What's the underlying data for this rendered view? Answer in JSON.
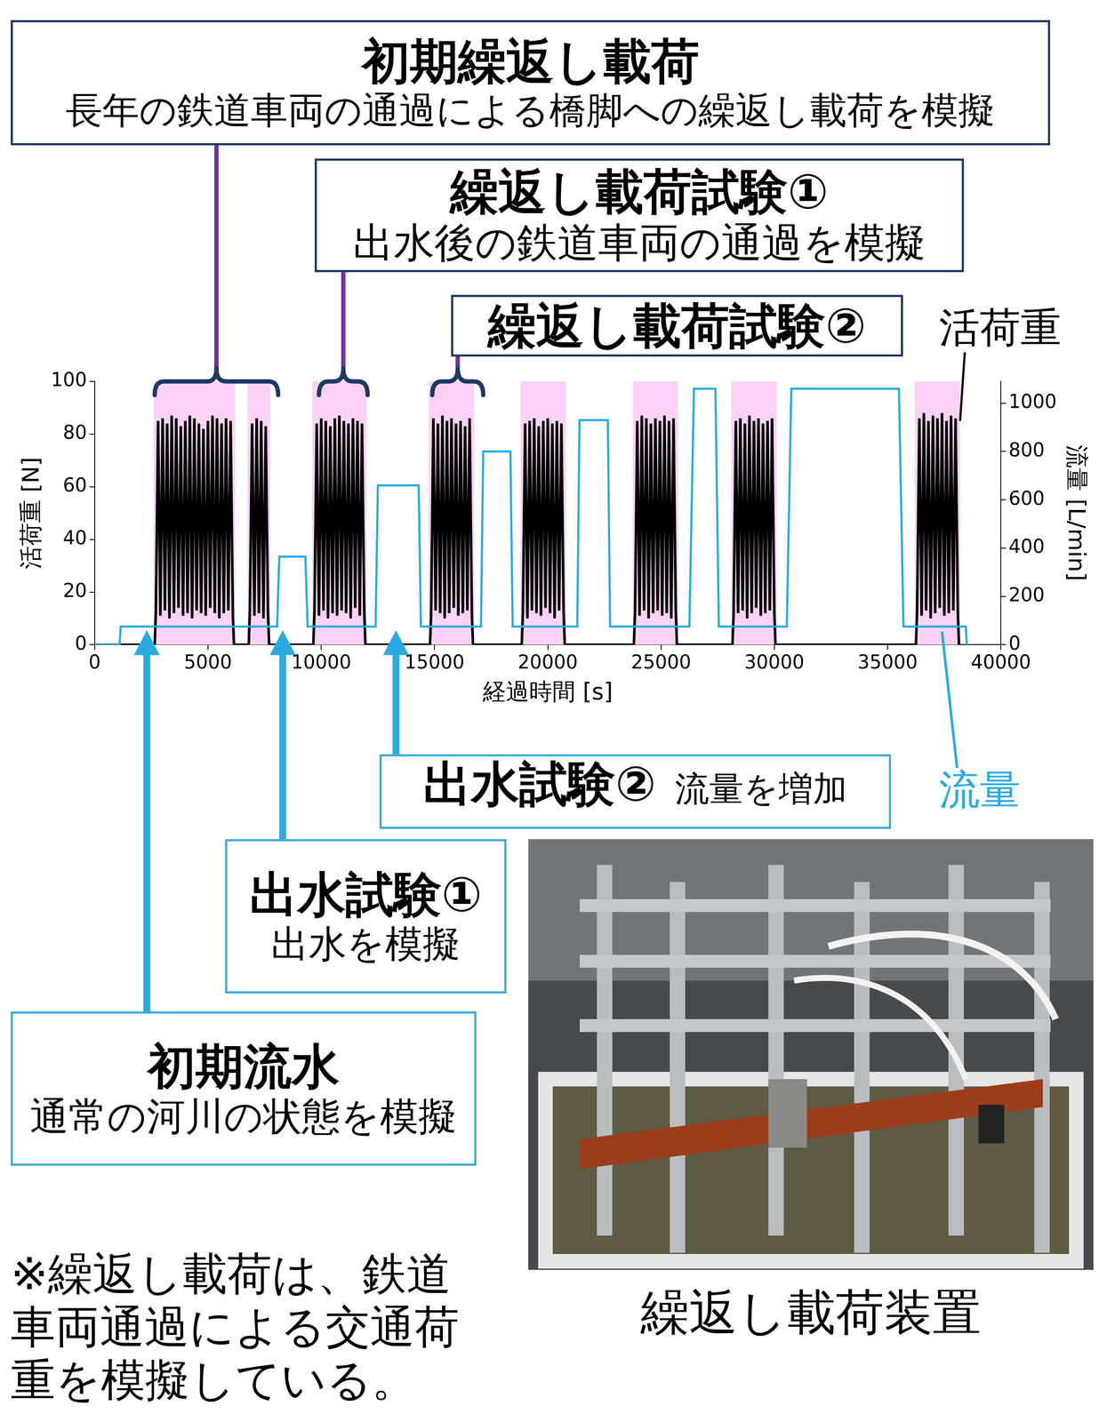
{
  "chart_data": {
    "type": "line",
    "x_label": "経過時間 [s]",
    "y_label": "活荷重 [N]",
    "y2_label": "流量 [L/min]",
    "xlim": [
      0,
      40000
    ],
    "xticks": [
      0,
      5000,
      10000,
      15000,
      20000,
      25000,
      30000,
      35000,
      40000
    ],
    "ylim": [
      0,
      100
    ],
    "yticks": [
      0,
      20,
      40,
      60,
      80,
      100
    ],
    "y2lim": [
      0,
      1090
    ],
    "y2ticks": [
      0,
      200,
      400,
      600,
      800,
      1000
    ],
    "grid": false,
    "series": [
      {
        "name": "活荷重",
        "color": "#000000",
        "axis": "y",
        "x": [
          0,
          2650,
          2700,
          2800,
          2900,
          3000,
          3100,
          3200,
          3300,
          3400,
          3500,
          3600,
          3700,
          3800,
          3900,
          4000,
          4100,
          4200,
          4300,
          4400,
          4500,
          4600,
          4700,
          4800,
          4900,
          5000,
          5100,
          5200,
          5300,
          5400,
          5500,
          5600,
          5700,
          5800,
          5900,
          6000,
          6100,
          6150,
          6800,
          6850,
          6950,
          7050,
          7150,
          7250,
          7350,
          7450,
          7550,
          7650,
          7700,
          9650,
          9700,
          9800,
          9900,
          10000,
          10100,
          10200,
          10300,
          10400,
          10500,
          10600,
          10700,
          10800,
          10900,
          11000,
          11100,
          11200,
          11300,
          11400,
          11500,
          11600,
          11700,
          11800,
          11900,
          11950,
          14800,
          14850,
          14950,
          15050,
          15150,
          15250,
          15350,
          15450,
          15550,
          15650,
          15750,
          15850,
          15950,
          16050,
          16150,
          16250,
          16350,
          16450,
          16550,
          16650,
          16700,
          18850,
          18900,
          19000,
          19100,
          19200,
          19300,
          19400,
          19500,
          19600,
          19700,
          19800,
          19900,
          20000,
          20100,
          20200,
          20300,
          20400,
          20500,
          20600,
          20700,
          20750,
          23800,
          23850,
          23950,
          24050,
          24150,
          24250,
          24350,
          24450,
          24550,
          24650,
          24750,
          24850,
          24950,
          25050,
          25150,
          25250,
          25350,
          25450,
          25550,
          25650,
          25700,
          28150,
          28200,
          28300,
          28400,
          28500,
          28600,
          28700,
          28800,
          28900,
          29000,
          29100,
          29200,
          29300,
          29400,
          29500,
          29600,
          29700,
          29800,
          29900,
          30000,
          30050,
          36250,
          36300,
          36400,
          36500,
          36600,
          36700,
          36800,
          36900,
          37000,
          37100,
          37200,
          37300,
          37400,
          37500,
          37600,
          37700,
          37800,
          37900,
          38000,
          38100,
          38150
        ],
        "values": [
          0,
          0,
          12,
          85,
          11,
          86,
          13,
          84,
          10,
          87,
          12,
          86,
          14,
          83,
          11,
          85,
          12,
          87,
          10,
          86,
          13,
          84,
          12,
          82,
          11,
          85,
          14,
          87,
          12,
          86,
          10,
          84,
          12,
          86,
          13,
          85,
          11,
          0,
          0,
          13,
          84,
          11,
          86,
          12,
          85,
          10,
          83,
          12,
          0,
          0,
          12,
          84,
          11,
          86,
          13,
          85,
          10,
          83,
          12,
          86,
          11,
          87,
          13,
          85,
          12,
          84,
          10,
          86,
          14,
          85,
          11,
          84,
          12,
          0,
          0,
          11,
          86,
          13,
          84,
          12,
          87,
          10,
          85,
          12,
          86,
          14,
          84,
          11,
          85,
          12,
          83,
          13,
          86,
          11,
          0,
          0,
          12,
          84,
          10,
          85,
          13,
          86,
          12,
          83,
          11,
          85,
          14,
          86,
          12,
          84,
          10,
          85,
          13,
          84,
          12,
          0,
          0,
          12,
          85,
          11,
          87,
          13,
          86,
          10,
          84,
          12,
          86,
          13,
          85,
          11,
          87,
          12,
          85,
          10,
          86,
          13,
          0,
          0,
          11,
          85,
          12,
          86,
          13,
          84,
          10,
          87,
          12,
          85,
          14,
          86,
          11,
          84,
          12,
          85,
          13,
          86,
          12,
          0,
          0,
          12,
          86,
          11,
          88,
          13,
          85,
          10,
          87,
          12,
          86,
          14,
          88,
          11,
          85,
          12,
          87,
          13,
          86,
          12,
          0
        ]
      },
      {
        "name": "流量",
        "color": "#29abe2",
        "axis": "y2",
        "x": [
          0,
          1100,
          1150,
          8050,
          8150,
          9300,
          9400,
          12400,
          12500,
          14300,
          14400,
          17050,
          17150,
          18350,
          18450,
          21300,
          21400,
          22650,
          22750,
          26250,
          26450,
          27400,
          27550,
          30550,
          30750,
          35500,
          35700,
          38450,
          38500
        ],
        "values": [
          0,
          0,
          75,
          75,
          365,
          365,
          75,
          75,
          660,
          660,
          75,
          75,
          800,
          800,
          75,
          75,
          930,
          930,
          75,
          75,
          1060,
          1060,
          75,
          75,
          1060,
          1060,
          75,
          75,
          0
        ]
      }
    ],
    "shaded_periods": [
      [
        2600,
        6200
      ],
      [
        6750,
        7750
      ],
      [
        9600,
        12000
      ],
      [
        14750,
        16750
      ],
      [
        18800,
        20800
      ],
      [
        23750,
        25750
      ],
      [
        28100,
        30100
      ],
      [
        36200,
        38200
      ]
    ],
    "bracket_annotations": [
      {
        "title": "初期繰返し載荷",
        "subtitle": "長年の鉄道車両の通過による橋脚への繰返し載荷を模擬",
        "span": [
          2650,
          8100
        ]
      },
      {
        "title": "繰返し載荷試験①",
        "subtitle": "出水後の鉄道車両の通過を模擬",
        "span": [
          9900,
          12050
        ]
      },
      {
        "title": "繰返し載荷試験②",
        "span": [
          14900,
          17150
        ]
      }
    ],
    "arrow_annotations": [
      {
        "title": "初期流水",
        "subtitle": "通常の河川の状態を模擬",
        "x": 2300
      },
      {
        "title": "出水試験①",
        "subtitle": "出水を模擬",
        "x": 8300
      },
      {
        "title": "出水試験②",
        "subtitle": "流量を増加",
        "x": 13300
      }
    ]
  },
  "note": "※繰返し載荷は、鉄道車両通過による交通荷重を模擬している。",
  "photo": {
    "caption": "繰返し載荷装置"
  }
}
